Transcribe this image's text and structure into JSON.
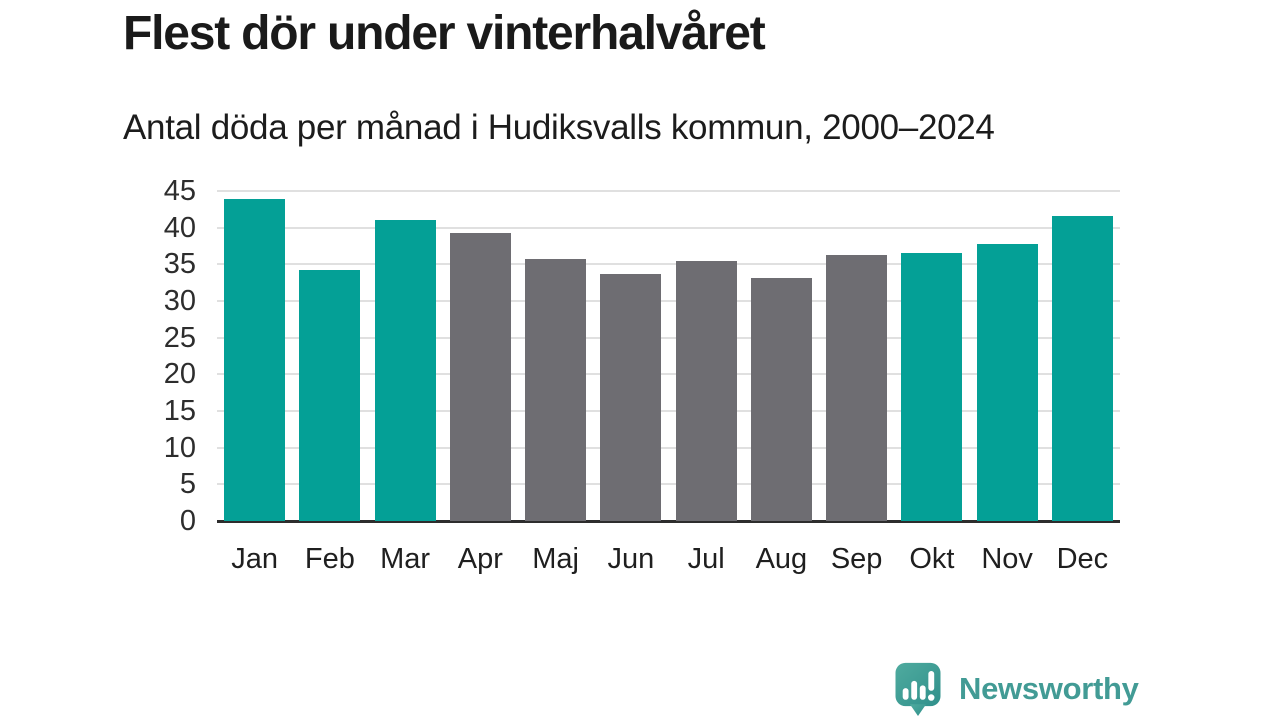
{
  "chart_data": {
    "type": "bar",
    "title": "Flest dör under vinterhalvåret",
    "subtitle": "Antal döda per månad i Hudiksvalls kommun, 2000–2024",
    "categories": [
      "Jan",
      "Feb",
      "Mar",
      "Apr",
      "Maj",
      "Jun",
      "Jul",
      "Aug",
      "Sep",
      "Okt",
      "Nov",
      "Dec"
    ],
    "values": [
      43.9,
      34.2,
      41.0,
      39.3,
      35.7,
      33.7,
      35.4,
      33.2,
      36.3,
      36.5,
      37.8,
      41.6
    ],
    "bar_colors": [
      "teal",
      "teal",
      "teal",
      "gray",
      "gray",
      "gray",
      "gray",
      "gray",
      "gray",
      "teal",
      "teal",
      "teal"
    ],
    "palette": {
      "teal": "#04a096",
      "gray": "#6e6d72"
    },
    "xlabel": "",
    "ylabel": "",
    "ylim": [
      0,
      45
    ],
    "yticks": [
      0,
      5,
      10,
      15,
      20,
      25,
      30,
      35,
      40,
      45
    ],
    "grid": "horizontal",
    "legend": "none",
    "gridline_color": "#e0e0e0",
    "axis_color": "#2d2d2d"
  },
  "footer": {
    "brand": "Newsworthy",
    "logo_icon": "newsworthy-speech-bubble-chart-icon",
    "brand_color": "#429b95",
    "logo_fill_top": "#4fab9f",
    "logo_fill_bottom": "#30908b"
  }
}
